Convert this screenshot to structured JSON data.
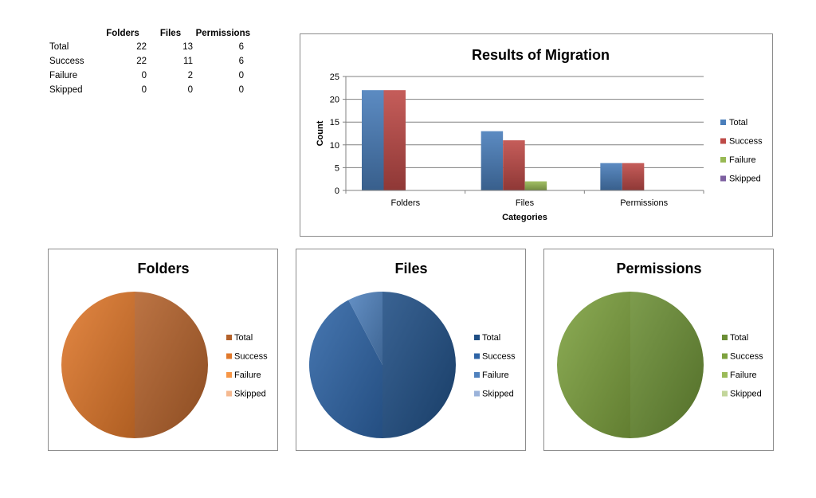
{
  "table": {
    "headers": [
      "",
      "Folders",
      "Files",
      "Permissions"
    ],
    "rows": [
      {
        "label": "Total",
        "values": [
          "22",
          "13",
          "6"
        ]
      },
      {
        "label": "Success",
        "values": [
          "22",
          "11",
          "6"
        ]
      },
      {
        "label": "Failure",
        "values": [
          "0",
          "2",
          "0"
        ]
      },
      {
        "label": "Skipped",
        "values": [
          "0",
          "0",
          "0"
        ]
      }
    ]
  },
  "chart_data": [
    {
      "type": "bar",
      "title": "Results of Migration",
      "xlabel": "Categories",
      "ylabel": "Count",
      "categories": [
        "Folders",
        "Files",
        "Permissions"
      ],
      "series": [
        {
          "name": "Total",
          "values": [
            22,
            13,
            6
          ],
          "color": "#4A7EBB"
        },
        {
          "name": "Success",
          "values": [
            22,
            11,
            6
          ],
          "color": "#BE4B48"
        },
        {
          "name": "Failure",
          "values": [
            0,
            2,
            0
          ],
          "color": "#98B954"
        },
        {
          "name": "Skipped",
          "values": [
            0,
            0,
            0
          ],
          "color": "#7D60A0"
        }
      ],
      "ylim": [
        0,
        25
      ],
      "yticks": [
        0,
        5,
        10,
        15,
        20,
        25
      ],
      "grid": true,
      "legend": "right"
    },
    {
      "type": "pie",
      "title": "Folders",
      "labels": [
        "Total",
        "Success",
        "Failure",
        "Skipped"
      ],
      "values": [
        22,
        22,
        0,
        0
      ],
      "colors": [
        "#B3612A",
        "#E0782B",
        "#F79646",
        "#F5B990"
      ],
      "legend": "right"
    },
    {
      "type": "pie",
      "title": "Files",
      "labels": [
        "Total",
        "Success",
        "Failure",
        "Skipped"
      ],
      "values": [
        13,
        11,
        2,
        0
      ],
      "colors": [
        "#1F4E84",
        "#2E64A6",
        "#4F81BD",
        "#9BB3DA"
      ],
      "legend": "right"
    },
    {
      "type": "pie",
      "title": "Permissions",
      "labels": [
        "Total",
        "Success",
        "Failure",
        "Skipped"
      ],
      "values": [
        6,
        6,
        0,
        0
      ],
      "colors": [
        "#6B8E35",
        "#7EA23F",
        "#9BBB59",
        "#C3D69B"
      ],
      "legend": "right"
    }
  ]
}
